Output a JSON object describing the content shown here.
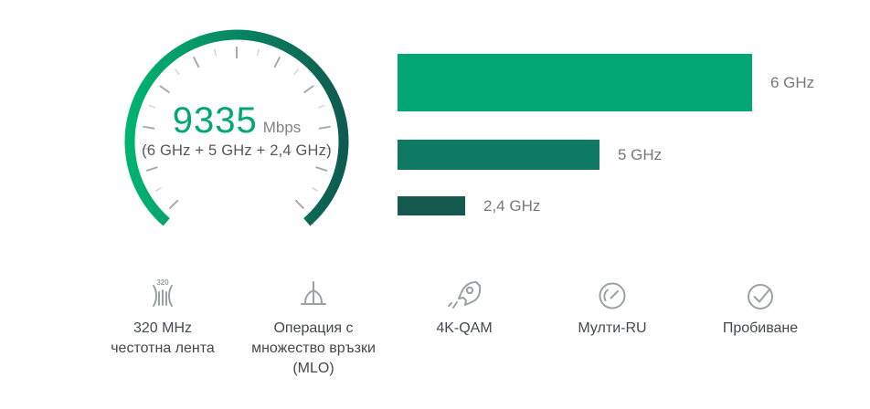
{
  "gauge": {
    "value": "9335",
    "unit": "Mbps",
    "subtitle": "(6 GHz + 5 GHz + 2,4 GHz)",
    "value_color": "#00a673",
    "unit_color": "#7f8386",
    "subtitle_color": "#54585b",
    "arc": {
      "gradient_start": "#00b371",
      "gradient_end": "#0e5b50",
      "tick_color_major": "#a6aaad",
      "tick_color_minor": "#d3d6d8"
    }
  },
  "chart_data": {
    "type": "bar",
    "orientation": "horizontal",
    "title": "",
    "categories": [
      "6 GHz",
      "5 GHz",
      "2,4 GHz"
    ],
    "values_pct_of_max": [
      100,
      57,
      19
    ],
    "bar_colors": [
      "#00a673",
      "#0e7a63",
      "#15584e"
    ],
    "label_color": "#76787b",
    "axis": "none",
    "grid": false,
    "legend": "none"
  },
  "features": {
    "label_color": "#45484c",
    "icon_color": "#9aa0a3",
    "items": [
      {
        "icon": "bandwidth-320-icon",
        "lines": [
          "320 MHz",
          "честотна лента"
        ]
      },
      {
        "icon": "mlo-icon",
        "lines": [
          "Операция с",
          "множество връзки",
          "(MLO)"
        ]
      },
      {
        "icon": "rocket-icon",
        "lines": [
          "4K-QAM"
        ]
      },
      {
        "icon": "multi-ru-gauge-icon",
        "lines": [
          "Мулти-RU"
        ]
      },
      {
        "icon": "puncturing-check-icon",
        "lines": [
          "Пробиване"
        ]
      }
    ]
  }
}
